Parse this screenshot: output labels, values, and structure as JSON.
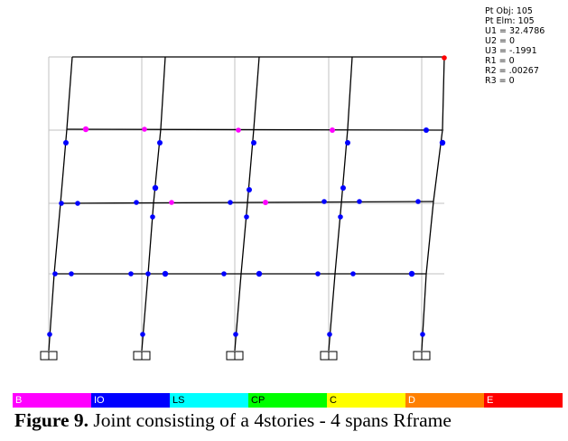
{
  "point_info": {
    "lines": [
      "Pt Obj: 105",
      "Pt Elm: 105",
      "U1 = 32.4786",
      "U2 = 0",
      "U3 = -.1991",
      "R1 = 0",
      "R2 = .00267",
      "R3 = 0"
    ]
  },
  "legend": [
    {
      "label": "B",
      "color": "#ff00ff",
      "text_color": "#ffffff"
    },
    {
      "label": "IO",
      "color": "#0000ff",
      "text_color": "#ffffff"
    },
    {
      "label": "LS",
      "color": "#00ffff",
      "text_color": "#000000"
    },
    {
      "label": "CP",
      "color": "#00ff00",
      "text_color": "#000000"
    },
    {
      "label": "C",
      "color": "#ffff00",
      "text_color": "#000000"
    },
    {
      "label": "D",
      "color": "#ff8000",
      "text_color": "#ffffff"
    },
    {
      "label": "E",
      "color": "#ff0000",
      "text_color": "#ffffff"
    }
  ],
  "caption": {
    "label": "Figure 9.",
    "text": " Joint consisting of a 4stories - 4 spans Rframe"
  },
  "colors": {
    "frame_line": "#000000",
    "grid_line": "#c0c0c0",
    "hinge_B": "#ff00ff",
    "hinge_IO": "#0000ff",
    "hinge_E": "#ff0000"
  },
  "structure": {
    "stories": 4,
    "spans": 4,
    "supports": 5
  }
}
